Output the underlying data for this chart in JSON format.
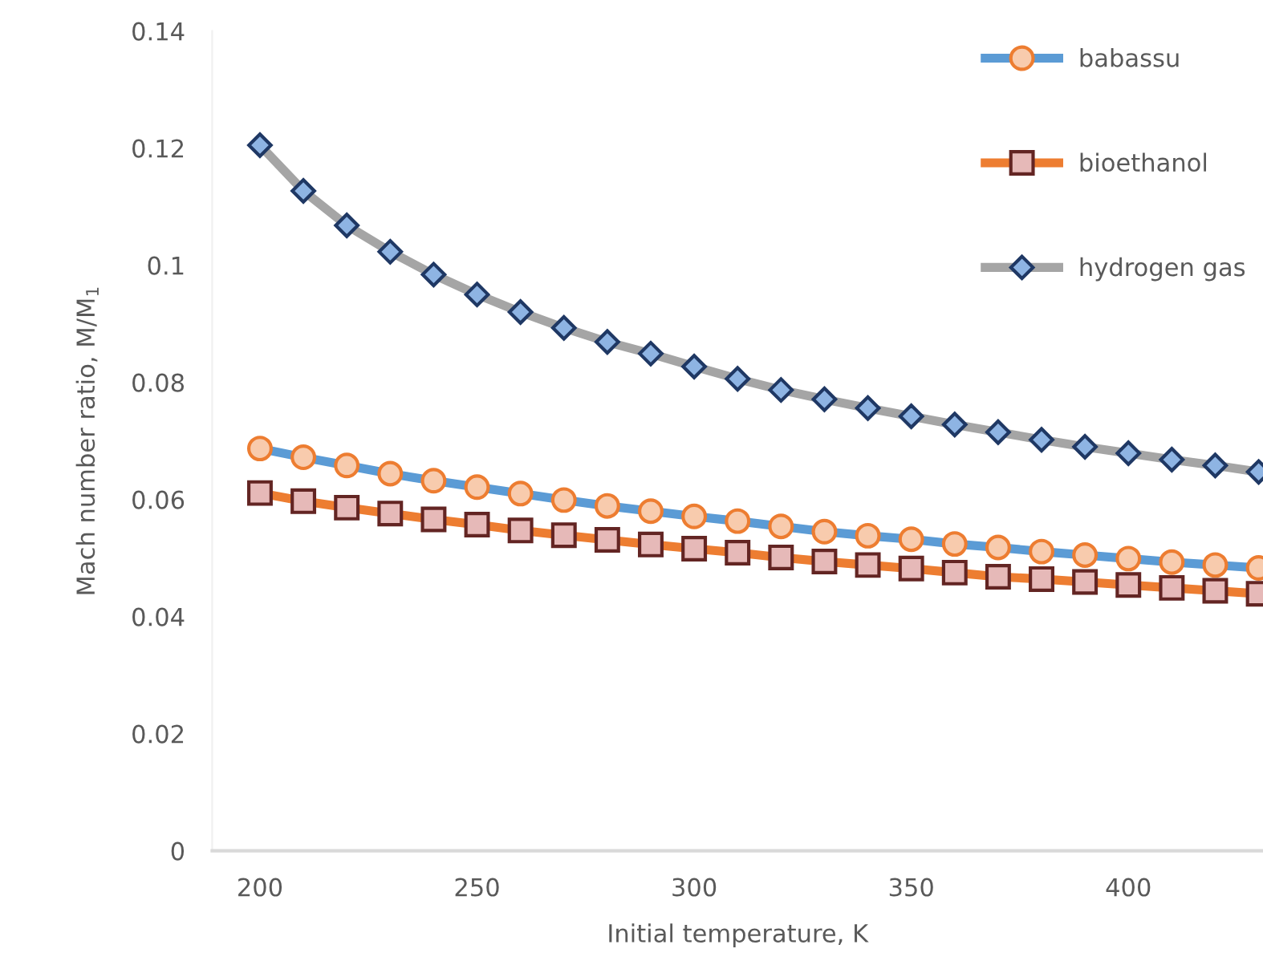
{
  "chart_data": {
    "type": "line",
    "xlabel": "Initial temperature, K",
    "ylabel": "Mach number ratio, M/M$_{1}$",
    "x": [
      200,
      210,
      220,
      230,
      240,
      250,
      260,
      270,
      280,
      290,
      300,
      310,
      320,
      330,
      340,
      350,
      360,
      370,
      380,
      390,
      400,
      410,
      420,
      430
    ],
    "series": [
      {
        "name": "babassu",
        "color": "#5b9bd5",
        "marker": "circle",
        "values": [
          0.0687,
          0.0672,
          0.0658,
          0.0644,
          0.0632,
          0.0621,
          0.061,
          0.0599,
          0.0589,
          0.058,
          0.0571,
          0.0563,
          0.0554,
          0.0545,
          0.0538,
          0.0532,
          0.0524,
          0.0518,
          0.0511,
          0.0505,
          0.0499,
          0.0493,
          0.0488,
          0.0483
        ]
      },
      {
        "name": "bioethanol",
        "color": "#ed7d31",
        "marker": "square",
        "values": [
          0.0611,
          0.0597,
          0.0586,
          0.0576,
          0.0566,
          0.0557,
          0.0547,
          0.0539,
          0.0531,
          0.0523,
          0.0516,
          0.0509,
          0.0501,
          0.0494,
          0.0488,
          0.0482,
          0.0475,
          0.0468,
          0.0464,
          0.0459,
          0.0454,
          0.0449,
          0.0444,
          0.0439
        ]
      },
      {
        "name": "hydrogen gas",
        "color": "#a5a5a5",
        "marker": "diamond",
        "values": [
          0.1205,
          0.1127,
          0.1068,
          0.1023,
          0.0984,
          0.095,
          0.092,
          0.0893,
          0.0869,
          0.0849,
          0.0827,
          0.0806,
          0.0787,
          0.0771,
          0.0756,
          0.0742,
          0.0728,
          0.0715,
          0.0702,
          0.069,
          0.0679,
          0.0668,
          0.0658,
          0.0647
        ]
      }
    ],
    "xlim": [
      189,
      431
    ],
    "xticks": [
      200,
      250,
      300,
      350,
      400
    ],
    "ylim": [
      0,
      0.14
    ],
    "yticks": [
      0,
      0.02,
      0.04,
      0.06,
      0.08,
      0.1,
      0.12,
      0.14
    ],
    "grid": false,
    "legend": "top right"
  }
}
